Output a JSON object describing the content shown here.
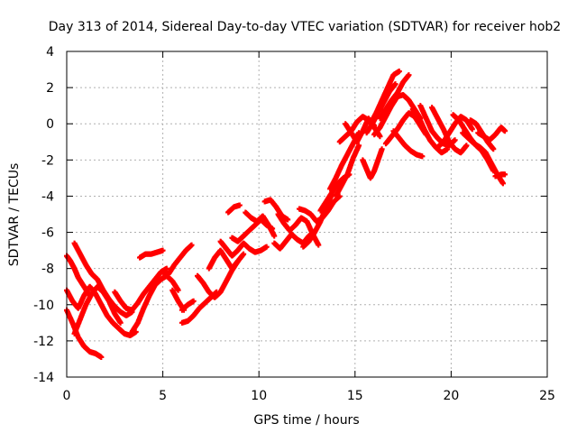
{
  "chart_data": {
    "type": "scatter",
    "title": "Day 313 of 2014, Sidereal Day-to-day VTEC variation (SDTVAR) for receiver hob2",
    "xlabel": "GPS time / hours",
    "ylabel": "SDTVAR / TECUs",
    "xlim": [
      0,
      25
    ],
    "ylim": [
      -14,
      4
    ],
    "xticks": [
      0,
      5,
      10,
      15,
      20,
      25
    ],
    "yticks": [
      -14,
      -12,
      -10,
      -8,
      -6,
      -4,
      -2,
      0,
      2,
      4
    ],
    "xtick_labels": [
      "0",
      "5",
      "10",
      "15",
      "20",
      "25"
    ],
    "ytick_labels": [
      "-14",
      "-12",
      "-10",
      "-8",
      "-6",
      "-4",
      "-2",
      "0",
      "2",
      "4"
    ],
    "grid": true,
    "marker": "plus",
    "color": "#ff0000",
    "series": [
      {
        "x": [
          0.0,
          0.3,
          0.6,
          0.9,
          1.2,
          1.5,
          1.8
        ],
        "y": [
          -10.3,
          -11.0,
          -11.8,
          -12.3,
          -12.6,
          -12.7,
          -12.9
        ]
      },
      {
        "x": [
          0.0,
          0.3,
          0.6,
          0.9,
          1.2,
          1.5,
          1.8,
          2.1,
          2.4,
          2.7,
          3.0,
          3.3,
          3.6
        ],
        "y": [
          -9.2,
          -9.8,
          -10.2,
          -9.5,
          -9.0,
          -9.4,
          -10.0,
          -10.6,
          -11.0,
          -11.3,
          -11.6,
          -11.7,
          -11.5
        ]
      },
      {
        "x": [
          0.4,
          0.7,
          1.0,
          1.3,
          1.6,
          1.9,
          2.2,
          2.5,
          2.8,
          3.1,
          3.4
        ],
        "y": [
          -6.6,
          -7.2,
          -7.8,
          -8.3,
          -8.6,
          -9.2,
          -9.7,
          -10.1,
          -10.4,
          -10.6,
          -10.4
        ]
      },
      {
        "x": [
          0.4,
          0.7,
          1.0,
          1.3,
          1.6,
          1.9,
          2.2,
          2.5,
          2.8
        ],
        "y": [
          -11.6,
          -10.8,
          -10.0,
          -9.4,
          -9.0,
          -9.3,
          -9.8,
          -10.5,
          -11.0
        ]
      },
      {
        "x": [
          0.0,
          0.2,
          0.4,
          0.6,
          0.9,
          1.2
        ],
        "y": [
          -7.3,
          -7.6,
          -8.0,
          -8.5,
          -9.0,
          -9.5
        ]
      },
      {
        "x": [
          3.4,
          3.7,
          4.0,
          4.3,
          4.6,
          4.9,
          5.2,
          5.5,
          5.8
        ],
        "y": [
          -11.5,
          -11.0,
          -10.2,
          -9.5,
          -8.9,
          -8.6,
          -8.4,
          -8.7,
          -9.2
        ]
      },
      {
        "x": [
          2.5,
          2.8,
          3.1,
          3.4,
          3.7,
          4.0,
          4.3,
          4.6,
          4.9,
          5.2
        ],
        "y": [
          -9.3,
          -9.8,
          -10.2,
          -10.3,
          -9.9,
          -9.4,
          -9.0,
          -8.6,
          -8.2,
          -8.0
        ]
      },
      {
        "x": [
          3.8,
          4.1,
          4.4,
          4.7,
          5.0
        ],
        "y": [
          -7.4,
          -7.2,
          -7.2,
          -7.1,
          -7.0
        ]
      },
      {
        "x": [
          5.0,
          5.3,
          5.6,
          5.9,
          6.2,
          6.5
        ],
        "y": [
          -8.2,
          -8.3,
          -7.8,
          -7.4,
          -7.0,
          -6.7
        ]
      },
      {
        "x": [
          5.5,
          5.8,
          6.1
        ],
        "y": [
          -9.2,
          -9.8,
          -10.3
        ]
      },
      {
        "x": [
          6.0,
          6.3,
          6.6
        ],
        "y": [
          -10.3,
          -10.0,
          -9.8
        ]
      },
      {
        "x": [
          6.0,
          6.3,
          6.6,
          6.9,
          7.2,
          7.5,
          7.8
        ],
        "y": [
          -11.0,
          -10.9,
          -10.6,
          -10.2,
          -9.9,
          -9.6,
          -9.3
        ]
      },
      {
        "x": [
          6.8,
          7.1,
          7.4,
          7.7,
          8.0,
          8.3,
          8.6,
          8.9
        ],
        "y": [
          -8.4,
          -8.8,
          -9.3,
          -9.6,
          -9.3,
          -8.7,
          -8.1,
          -7.6
        ]
      },
      {
        "x": [
          7.4,
          7.7,
          8.0,
          8.3,
          8.6,
          8.9,
          9.2
        ],
        "y": [
          -8.0,
          -7.4,
          -7.0,
          -7.5,
          -8.0,
          -7.6,
          -7.2
        ]
      },
      {
        "x": [
          8.0,
          8.3,
          8.6,
          8.9,
          9.2,
          9.5,
          9.8,
          10.1,
          10.4
        ],
        "y": [
          -6.5,
          -6.9,
          -7.3,
          -7.0,
          -6.6,
          -6.9,
          -7.1,
          -7.0,
          -6.8
        ]
      },
      {
        "x": [
          8.6,
          8.9,
          9.2,
          9.5,
          9.8,
          10.1,
          10.4,
          10.7
        ],
        "y": [
          -6.3,
          -6.5,
          -6.2,
          -5.9,
          -5.6,
          -5.3,
          -5.6,
          -5.8
        ]
      },
      {
        "x": [
          8.4,
          8.7,
          9.0
        ],
        "y": [
          -4.9,
          -4.6,
          -4.5
        ]
      },
      {
        "x": [
          9.3,
          9.6,
          9.9,
          10.2,
          10.5,
          10.8
        ],
        "y": [
          -4.9,
          -5.2,
          -5.4,
          -5.1,
          -5.6,
          -6.2
        ]
      },
      {
        "x": [
          10.3,
          10.6,
          10.9,
          11.2,
          11.5
        ],
        "y": [
          -4.3,
          -4.2,
          -4.6,
          -5.1,
          -5.3
        ]
      },
      {
        "x": [
          10.8,
          11.1,
          11.4,
          11.7,
          12.0,
          12.3,
          12.6,
          12.9
        ],
        "y": [
          -6.6,
          -6.9,
          -6.5,
          -6.1,
          -6.4,
          -6.6,
          -6.2,
          -6.0
        ]
      },
      {
        "x": [
          11.0,
          11.3,
          11.6,
          11.9,
          12.2,
          12.5,
          12.8,
          13.1
        ],
        "y": [
          -5.0,
          -5.5,
          -5.9,
          -5.6,
          -5.2,
          -5.4,
          -6.1,
          -6.7
        ]
      },
      {
        "x": [
          12.1,
          12.4,
          12.7,
          13.0,
          13.3,
          13.6,
          13.9,
          14.2
        ],
        "y": [
          -4.7,
          -4.8,
          -5.0,
          -5.4,
          -5.2,
          -4.8,
          -4.3,
          -4.0
        ]
      },
      {
        "x": [
          12.3,
          12.6,
          12.9,
          13.2,
          13.5,
          13.8
        ],
        "y": [
          -6.8,
          -6.5,
          -6.0,
          -5.4,
          -4.6,
          -3.9
        ]
      },
      {
        "x": [
          13.2,
          13.5,
          13.8,
          14.1,
          14.4,
          14.7
        ],
        "y": [
          -4.8,
          -4.3,
          -3.8,
          -3.3,
          -3.0,
          -2.8
        ]
      },
      {
        "x": [
          13.7,
          14.0,
          14.3,
          14.6,
          14.9,
          15.2
        ],
        "y": [
          -3.6,
          -3.0,
          -2.3,
          -1.7,
          -1.1,
          -0.5
        ]
      },
      {
        "x": [
          14.0,
          14.3,
          14.6,
          14.9,
          15.2
        ],
        "y": [
          -4.0,
          -3.4,
          -2.8,
          -1.9,
          -1.2
        ]
      },
      {
        "x": [
          14.5,
          14.8,
          15.1,
          15.4,
          15.7,
          16.0,
          16.3
        ],
        "y": [
          0.0,
          -0.5,
          -1.0,
          -0.4,
          0.3,
          -0.2,
          -0.7
        ]
      },
      {
        "x": [
          14.2,
          14.5,
          14.8,
          15.1,
          15.4,
          15.7,
          16.0
        ],
        "y": [
          -1.0,
          -0.7,
          -0.4,
          0.1,
          0.4,
          0.2,
          -0.1
        ]
      },
      {
        "x": [
          15.4,
          15.6,
          15.8,
          16.0,
          16.2,
          16.4
        ],
        "y": [
          -2.0,
          -2.5,
          -3.0,
          -2.6,
          -2.0,
          -1.4
        ]
      },
      {
        "x": [
          15.8,
          16.1,
          16.4,
          16.7,
          17.0,
          17.3
        ],
        "y": [
          0.0,
          0.6,
          1.3,
          2.0,
          2.7,
          2.9
        ]
      },
      {
        "x": [
          15.6,
          15.9,
          16.2,
          16.5,
          16.8,
          17.1
        ],
        "y": [
          -0.5,
          0.0,
          0.6,
          1.2,
          1.8,
          2.2
        ]
      },
      {
        "x": [
          16.3,
          16.6,
          16.9,
          17.2,
          17.5,
          17.8
        ],
        "y": [
          0.3,
          0.8,
          1.3,
          1.7,
          2.3,
          2.7
        ]
      },
      {
        "x": [
          16.0,
          16.3,
          16.6,
          16.9,
          17.2,
          17.5,
          17.8,
          18.1,
          18.4
        ],
        "y": [
          -0.6,
          -0.2,
          0.4,
          1.0,
          1.5,
          1.6,
          1.3,
          0.8,
          0.3
        ]
      },
      {
        "x": [
          16.6,
          16.9,
          17.2,
          17.5,
          17.8,
          18.1,
          18.4,
          18.7
        ],
        "y": [
          -1.1,
          -0.7,
          -0.3,
          0.2,
          0.6,
          0.4,
          -0.1,
          -0.6
        ]
      },
      {
        "x": [
          17.0,
          17.3,
          17.6,
          17.9,
          18.2,
          18.5
        ],
        "y": [
          -0.4,
          -0.8,
          -1.2,
          -1.5,
          -1.7,
          -1.8
        ]
      },
      {
        "x": [
          18.0,
          18.3,
          18.6,
          18.9,
          19.2,
          19.5,
          19.8
        ],
        "y": [
          0.8,
          0.4,
          -0.3,
          -0.9,
          -1.3,
          -1.6,
          -1.4
        ]
      },
      {
        "x": [
          18.4,
          18.7,
          19.0,
          19.3,
          19.6,
          19.9,
          20.2
        ],
        "y": [
          1.0,
          0.3,
          -0.4,
          -0.8,
          -1.1,
          -1.2,
          -0.9
        ]
      },
      {
        "x": [
          19.0,
          19.3,
          19.6,
          19.9,
          20.2,
          20.5,
          20.8
        ],
        "y": [
          0.9,
          0.3,
          -0.3,
          -1.0,
          -1.4,
          -1.6,
          -1.2
        ]
      },
      {
        "x": [
          19.3,
          19.6,
          19.9,
          20.2,
          20.5,
          20.8,
          21.1
        ],
        "y": [
          -1.3,
          -1.0,
          -0.5,
          0.0,
          0.4,
          0.2,
          -0.3
        ]
      },
      {
        "x": [
          20.1,
          20.4,
          20.7,
          21.0,
          21.3,
          21.6,
          21.9,
          22.2
        ],
        "y": [
          0.5,
          0.2,
          -0.3,
          -0.8,
          -1.2,
          -1.5,
          -2.0,
          -2.6
        ]
      },
      {
        "x": [
          20.6,
          20.9,
          21.2,
          21.5,
          21.8,
          22.1,
          22.4,
          22.7
        ],
        "y": [
          -0.5,
          -0.8,
          -1.1,
          -1.3,
          -1.6,
          -2.2,
          -2.8,
          -3.3
        ]
      },
      {
        "x": [
          21.4,
          21.7,
          22.0,
          22.3,
          22.6,
          22.8
        ],
        "y": [
          -0.5,
          -0.7,
          -0.9,
          -0.6,
          -0.2,
          -0.4
        ]
      },
      {
        "x": [
          22.3,
          22.6,
          22.8
        ],
        "y": [
          -2.9,
          -2.8,
          -2.8
        ]
      },
      {
        "x": [
          21.0,
          21.3,
          21.6,
          21.9,
          22.2
        ],
        "y": [
          0.2,
          0.0,
          -0.5,
          -1.0,
          -1.4
        ]
      }
    ]
  }
}
